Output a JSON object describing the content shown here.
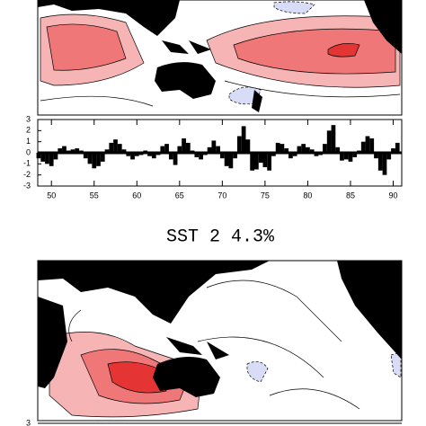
{
  "chart_data": [
    {
      "type": "bar",
      "color": "#000000",
      "x": [
        48.5,
        49,
        49.5,
        50,
        50.5,
        51,
        51.5,
        52,
        52.5,
        53,
        53.5,
        54,
        54.5,
        55,
        55.5,
        56,
        56.5,
        57,
        57.5,
        58,
        58.5,
        59,
        59.5,
        60,
        60.5,
        61,
        61.5,
        62,
        62.5,
        63,
        63.5,
        64,
        64.5,
        65,
        65.5,
        66,
        66.5,
        67,
        67.5,
        68,
        68.5,
        69,
        69.5,
        70,
        70.5,
        71,
        71.5,
        72,
        72.5,
        73,
        73.5,
        74,
        74.5,
        75,
        75.5,
        76,
        76.5,
        77,
        77.5,
        78,
        78.5,
        79,
        79.5,
        80,
        80.5,
        81,
        81.5,
        82,
        82.5,
        83,
        83.5,
        84,
        84.5,
        85,
        85.5,
        86,
        86.5,
        87,
        87.5,
        88,
        88.5,
        89,
        89.5,
        90,
        90.5
      ],
      "values": [
        -0.5,
        -0.8,
        -1.0,
        -1.2,
        -0.6,
        0.4,
        0.6,
        0.2,
        0.3,
        0.4,
        0.2,
        -0.5,
        -1.0,
        -1.4,
        -1.2,
        -0.8,
        0.3,
        0.9,
        1.2,
        0.8,
        0.3,
        -0.3,
        -0.6,
        -0.3,
        -0.2,
        0.2,
        -0.3,
        -0.5,
        -0.2,
        0.6,
        0.8,
        -0.6,
        -1.1,
        0.6,
        1.3,
        0.9,
        0.2,
        -0.4,
        -0.6,
        -0.2,
        0.5,
        1.1,
        0.6,
        -0.5,
        -1.2,
        -1.4,
        -0.5,
        1.5,
        2.4,
        1.2,
        -1.6,
        -1.5,
        -0.9,
        -1.3,
        -1.6,
        -0.3,
        0.9,
        0.8,
        0.4,
        -0.5,
        -0.3,
        0.6,
        0.8,
        0.5,
        0.3,
        -0.3,
        -0.2,
        0.8,
        2.0,
        2.5,
        0.5,
        -0.7,
        -0.6,
        -0.8,
        -0.4,
        0.2,
        1.0,
        1.5,
        1.3,
        -0.5,
        -1.6,
        -2.0,
        -0.6,
        0.4,
        0.9
      ],
      "xlim": [
        48.4,
        91.0
      ],
      "xticks": [
        50,
        55,
        60,
        65,
        70,
        75,
        80,
        85,
        90
      ],
      "ylim": [
        -3,
        3
      ],
      "yticks": [
        -3,
        -2,
        -1,
        0,
        1,
        2,
        3
      ]
    },
    {
      "type": "bar",
      "title": "SST  2  4.3%",
      "ylim": [
        -3,
        3
      ],
      "yticks": [
        3
      ]
    }
  ]
}
